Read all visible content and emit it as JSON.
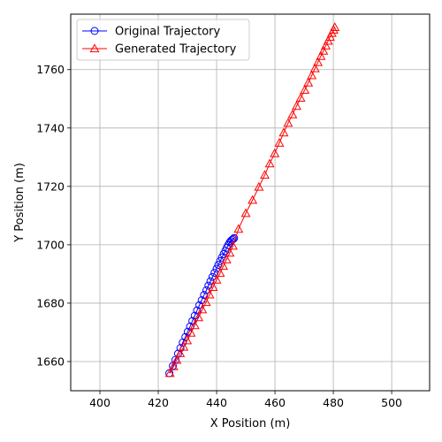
{
  "chart_data": {
    "type": "line",
    "title": "",
    "xlabel": "X Position (m)",
    "ylabel": "Y Position (m)",
    "xlim": [
      390,
      513
    ],
    "ylim": [
      1650,
      1779
    ],
    "xticks": [
      400,
      420,
      440,
      460,
      480,
      500
    ],
    "yticks": [
      1660,
      1680,
      1700,
      1720,
      1740,
      1760
    ],
    "grid": true,
    "legend_position": "upper-left",
    "series": [
      {
        "name": "Original Trajectory",
        "color": "#0000ff",
        "marker": "circle",
        "x": [
          423.8,
          425.0,
          425.9,
          426.8,
          427.6,
          428.4,
          429.3,
          430.1,
          430.9,
          431.7,
          432.5,
          433.3,
          434.1,
          434.9,
          435.7,
          436.5,
          437.2,
          437.9,
          438.6,
          439.3,
          440.0,
          440.6,
          441.2,
          441.8,
          442.4,
          443.0,
          443.5,
          444.0,
          444.5,
          444.9,
          445.3,
          445.7,
          446.0
        ],
        "y": [
          1656.0,
          1658.5,
          1660.6,
          1662.7,
          1664.6,
          1666.5,
          1668.4,
          1670.2,
          1672.0,
          1673.9,
          1675.7,
          1677.5,
          1679.3,
          1681.0,
          1682.8,
          1684.4,
          1686.0,
          1687.5,
          1689.0,
          1690.4,
          1691.8,
          1693.1,
          1694.4,
          1695.6,
          1696.8,
          1697.9,
          1699.0,
          1699.9,
          1700.8,
          1701.3,
          1701.7,
          1702.0,
          1702.3
        ]
      },
      {
        "name": "Generated Trajectory",
        "color": "#ff0000",
        "marker": "triangle",
        "x": [
          424.0,
          425.2,
          426.3,
          427.5,
          428.7,
          429.9,
          431.2,
          432.5,
          433.8,
          435.1,
          436.4,
          437.6,
          438.8,
          440.0,
          441.2,
          442.3,
          443.4,
          444.5,
          445.6,
          447.5,
          450.0,
          452.3,
          454.5,
          456.5,
          458.2,
          459.9,
          461.5,
          463.0,
          464.5,
          466.0,
          467.4,
          468.8,
          470.2,
          471.4,
          472.6,
          473.7,
          474.7,
          475.7,
          476.6,
          477.4,
          478.2,
          478.9,
          479.5,
          480.1,
          480.5
        ],
        "y": [
          1656.0,
          1658.3,
          1660.5,
          1662.8,
          1665.0,
          1667.2,
          1669.8,
          1672.4,
          1675.1,
          1677.8,
          1680.3,
          1682.9,
          1685.5,
          1688.0,
          1690.3,
          1692.7,
          1694.9,
          1697.2,
          1699.6,
          1705.4,
          1710.8,
          1715.3,
          1719.8,
          1723.9,
          1727.8,
          1731.3,
          1734.9,
          1738.4,
          1741.7,
          1744.6,
          1747.5,
          1750.3,
          1753.0,
          1755.5,
          1758.0,
          1760.4,
          1762.5,
          1764.6,
          1766.4,
          1768.2,
          1769.8,
          1771.2,
          1772.5,
          1773.6,
          1774.5
        ]
      }
    ]
  }
}
